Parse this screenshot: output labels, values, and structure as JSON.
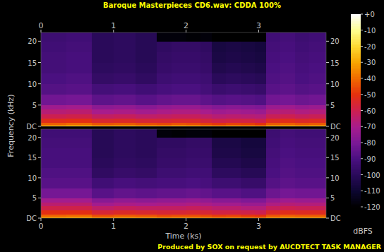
{
  "chart_data": {
    "type": "heatmap",
    "title": "Baroque Masterpieces CD6.wav: CDDA 100%",
    "x_label": "Time (ks)",
    "y_label": "Frequency (kHz)",
    "annotations": [
      "Produced by SOX on request by AUCDTECT TASK MANAGER"
    ],
    "xlim": [
      0,
      3.93
    ],
    "xticks": [
      0,
      1,
      2,
      3
    ],
    "ylim": [
      0,
      22.05
    ],
    "yticks": [
      {
        "value": 0,
        "label": "DC"
      },
      5,
      10,
      15,
      20
    ],
    "time_edges": [
      0,
      0.35,
      0.7,
      1.0,
      1.3,
      1.6,
      1.8,
      2.0,
      2.2,
      2.35,
      2.55,
      2.75,
      2.95,
      3.1,
      3.3,
      3.5,
      3.7,
      3.93
    ],
    "freq_edges": [
      0,
      0.5,
      1,
      2,
      3,
      4,
      5,
      7.5,
      10,
      12.5,
      15,
      17.5,
      20,
      22.05
    ],
    "cells": [
      [
        [
          -32,
          -30,
          -34,
          -33,
          -35,
          -36,
          -34,
          -35,
          -37,
          -39,
          -37,
          -38,
          -40,
          -33,
          -32,
          -34,
          -33
        ],
        [
          -42,
          -40,
          -44,
          -43,
          -45,
          -46,
          -44,
          -45,
          -47,
          -49,
          -47,
          -48,
          -50,
          -43,
          -42,
          -44,
          -43
        ],
        [
          -52,
          -51,
          -55,
          -54,
          -56,
          -56,
          -55,
          -55,
          -57,
          -59,
          -58,
          -58,
          -60,
          -53,
          -52,
          -54,
          -53
        ],
        [
          -60,
          -59,
          -63,
          -62,
          -64,
          -63,
          -62,
          -62,
          -64,
          -66,
          -65,
          -66,
          -67,
          -61,
          -60,
          -62,
          -61
        ],
        [
          -66,
          -65,
          -70,
          -69,
          -71,
          -69,
          -68,
          -68,
          -70,
          -72,
          -71,
          -72,
          -73,
          -67,
          -66,
          -68,
          -67
        ],
        [
          -72,
          -71,
          -76,
          -75,
          -77,
          -75,
          -74,
          -74,
          -76,
          -78,
          -77,
          -78,
          -79,
          -73,
          -72,
          -74,
          -73
        ],
        [
          -82,
          -81,
          -86,
          -85,
          -87,
          -85,
          -84,
          -84,
          -86,
          -88,
          -87,
          -88,
          -89,
          -82,
          -81,
          -83,
          -82
        ],
        [
          -88,
          -87,
          -92,
          -91,
          -93,
          -91,
          -90,
          -90,
          -92,
          -95,
          -94,
          -95,
          -96,
          -87,
          -86,
          -88,
          -87
        ],
        [
          -90,
          -89,
          -97,
          -96,
          -98,
          -94,
          -93,
          -93,
          -94,
          -100,
          -99,
          -100,
          -101,
          -89,
          -88,
          -90,
          -89
        ],
        [
          -92,
          -91,
          -99,
          -98,
          -100,
          -96,
          -95,
          -95,
          -96,
          -103,
          -102,
          -103,
          -104,
          -90,
          -89,
          -91,
          -90
        ],
        [
          -92,
          -91,
          -100,
          -99,
          -101,
          -97,
          -96,
          -96,
          -97,
          -105,
          -104,
          -105,
          -106,
          -91,
          -90,
          -92,
          -91
        ],
        [
          -93,
          -92,
          -100,
          -99,
          -101,
          -98,
          -97,
          -97,
          -98,
          -106,
          -105,
          -106,
          -107,
          -92,
          -91,
          -93,
          -92
        ],
        [
          -94,
          -93,
          -100,
          -99,
          -101,
          -118,
          -118,
          -119,
          -118,
          -120,
          -120,
          -120,
          -120,
          -93,
          -92,
          -94,
          -93
        ]
      ],
      [
        [
          -31,
          -30,
          -35,
          -33,
          -34,
          -36,
          -35,
          -35,
          -36,
          -38,
          -37,
          -39,
          -40,
          -34,
          -32,
          -33,
          -33
        ],
        [
          -41,
          -40,
          -45,
          -43,
          -44,
          -46,
          -45,
          -45,
          -46,
          -48,
          -47,
          -49,
          -50,
          -44,
          -42,
          -43,
          -43
        ],
        [
          -51,
          -51,
          -56,
          -54,
          -55,
          -56,
          -56,
          -55,
          -56,
          -58,
          -58,
          -59,
          -60,
          -54,
          -52,
          -53,
          -53
        ],
        [
          -59,
          -59,
          -64,
          -62,
          -63,
          -63,
          -63,
          -62,
          -63,
          -65,
          -65,
          -67,
          -67,
          -62,
          -60,
          -61,
          -61
        ],
        [
          -65,
          -65,
          -71,
          -69,
          -70,
          -69,
          -69,
          -68,
          -69,
          -71,
          -71,
          -73,
          -73,
          -68,
          -66,
          -67,
          -67
        ],
        [
          -71,
          -71,
          -77,
          -75,
          -76,
          -75,
          -75,
          -74,
          -75,
          -77,
          -77,
          -79,
          -79,
          -74,
          -72,
          -73,
          -73
        ],
        [
          -81,
          -81,
          -87,
          -85,
          -86,
          -85,
          -85,
          -84,
          -85,
          -87,
          -87,
          -89,
          -89,
          -83,
          -81,
          -82,
          -82
        ],
        [
          -87,
          -87,
          -93,
          -91,
          -92,
          -91,
          -91,
          -90,
          -91,
          -94,
          -94,
          -96,
          -96,
          -88,
          -86,
          -87,
          -87
        ],
        [
          -89,
          -89,
          -98,
          -96,
          -97,
          -94,
          -94,
          -93,
          -93,
          -99,
          -99,
          -101,
          -101,
          -90,
          -88,
          -89,
          -89
        ],
        [
          -91,
          -91,
          -100,
          -98,
          -99,
          -96,
          -96,
          -95,
          -95,
          -102,
          -102,
          -104,
          -104,
          -91,
          -89,
          -90,
          -90
        ],
        [
          -91,
          -91,
          -101,
          -99,
          -100,
          -97,
          -97,
          -96,
          -96,
          -104,
          -104,
          -106,
          -106,
          -92,
          -90,
          -91,
          -91
        ],
        [
          -92,
          -92,
          -101,
          -99,
          -100,
          -98,
          -98,
          -97,
          -97,
          -105,
          -105,
          -107,
          -107,
          -93,
          -91,
          -92,
          -92
        ],
        [
          -93,
          -93,
          -101,
          -99,
          -100,
          -118,
          -119,
          -118,
          -118,
          -120,
          -120,
          -120,
          -120,
          -94,
          -92,
          -93,
          -93
        ]
      ]
    ],
    "colorbar": {
      "range": [
        -120,
        0
      ],
      "ticks": [
        {
          "value": 0,
          "label": "+0"
        },
        -10,
        -20,
        -30,
        -40,
        -50,
        -60,
        -70,
        -80,
        -90,
        -100,
        -110,
        -120
      ],
      "label": "dBFS"
    }
  }
}
